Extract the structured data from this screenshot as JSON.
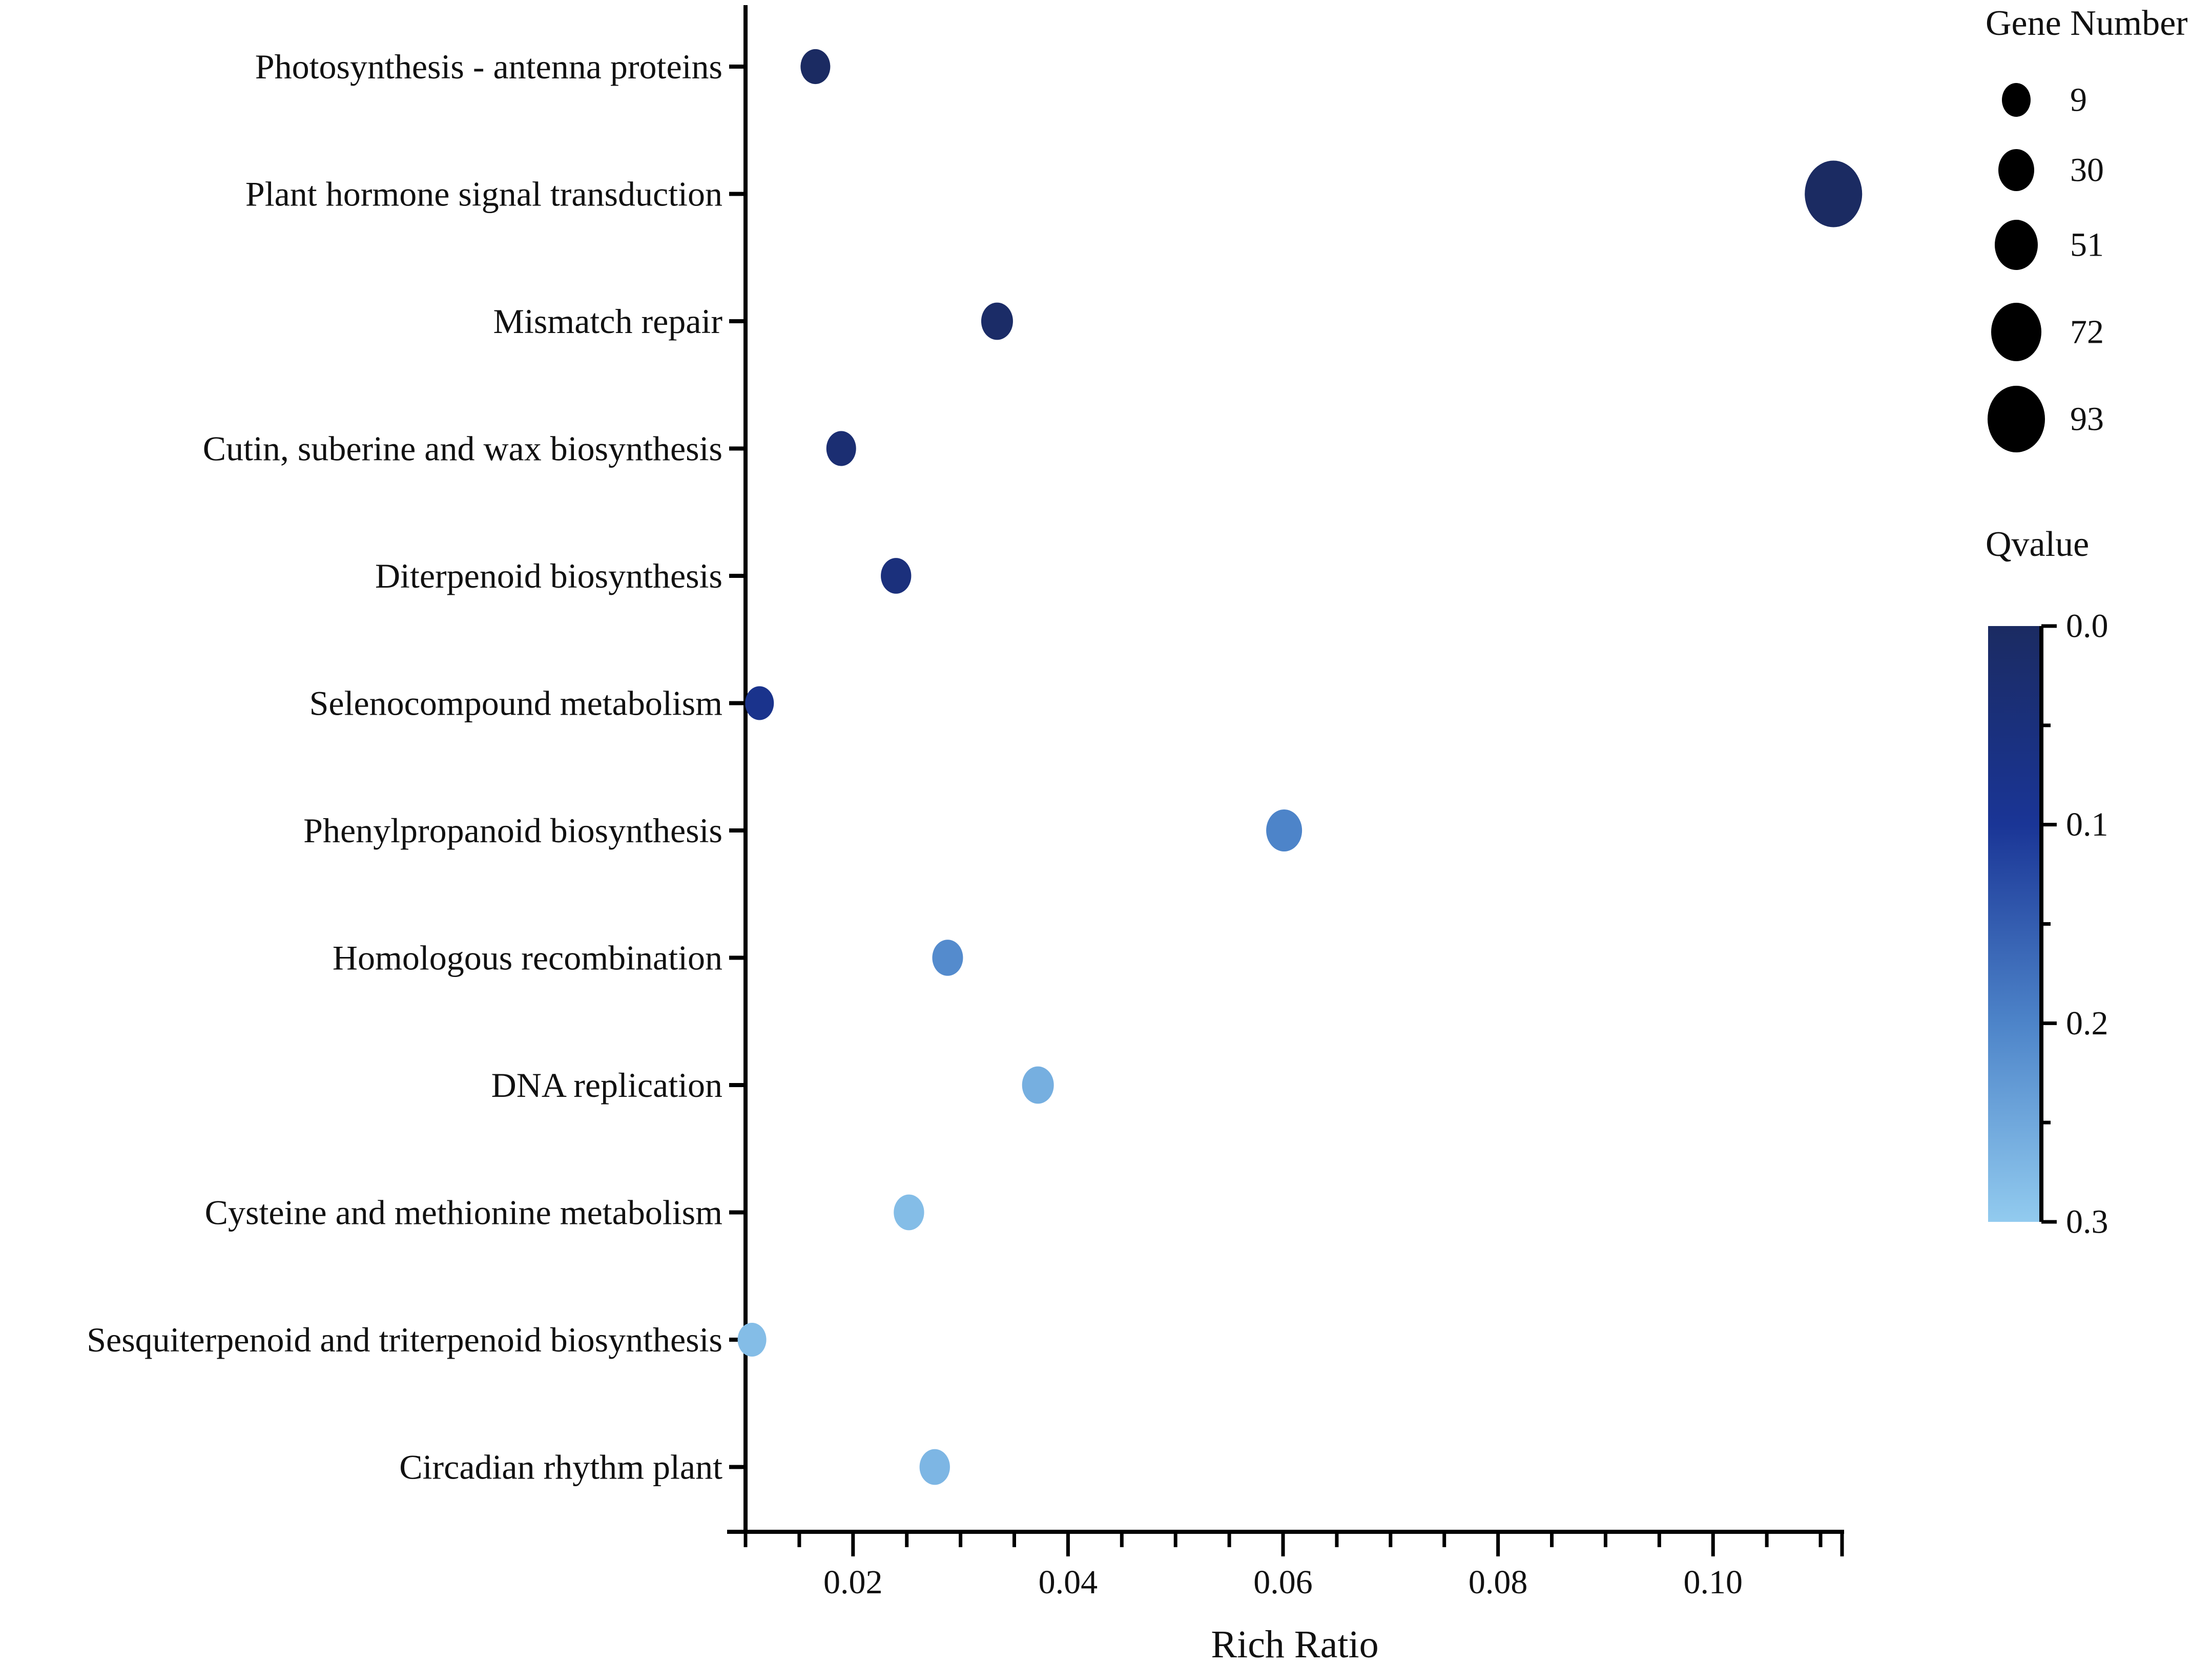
{
  "chart_data": {
    "type": "scatter",
    "subtype": "bubble",
    "title": "",
    "xlabel": "Rich Ratio",
    "ylabel": "",
    "xlim": [
      0.01,
      0.112
    ],
    "xticks": [
      0.02,
      0.04,
      0.06,
      0.08,
      0.1
    ],
    "xtick_labels": [
      "0.02",
      "0.04",
      "0.06",
      "0.08",
      "0.10"
    ],
    "categories": [
      "Photosynthesis - antenna proteins",
      "Plant hormone signal transduction",
      "Mismatch repair",
      "Cutin, suberine and wax biosynthesis",
      "Diterpenoid biosynthesis",
      "Selenocompound metabolism",
      "Phenylpropanoid biosynthesis",
      "Homologous recombination",
      "DNA replication",
      "Cysteine and methionine metabolism",
      "Sesquiterpenoid and triterpenoid biosynthesis",
      "Circadian rhythm plant"
    ],
    "points": [
      {
        "category": "Photosynthesis - antenna proteins",
        "rich_ratio": 0.0165,
        "gene_number": 12,
        "qvalue": 0.0
      },
      {
        "category": "Plant hormone signal transduction",
        "rich_ratio": 0.1112,
        "gene_number": 93,
        "qvalue": 0.0
      },
      {
        "category": "Mismatch repair",
        "rich_ratio": 0.0334,
        "gene_number": 18,
        "qvalue": 0.01
      },
      {
        "category": "Cutin, suberine and wax biosynthesis",
        "rich_ratio": 0.0189,
        "gene_number": 12,
        "qvalue": 0.03
      },
      {
        "category": "Diterpenoid biosynthesis",
        "rich_ratio": 0.024,
        "gene_number": 14,
        "qvalue": 0.05
      },
      {
        "category": "Selenocompound metabolism",
        "rich_ratio": 0.0113,
        "gene_number": 9,
        "qvalue": 0.08
      },
      {
        "category": "Phenylpropanoid biosynthesis",
        "rich_ratio": 0.0601,
        "gene_number": 30,
        "qvalue": 0.2
      },
      {
        "category": "Homologous recombination",
        "rich_ratio": 0.0288,
        "gene_number": 15,
        "qvalue": 0.21
      },
      {
        "category": "DNA replication",
        "rich_ratio": 0.0372,
        "gene_number": 18,
        "qvalue": 0.26
      },
      {
        "category": "Cysteine and methionine metabolism",
        "rich_ratio": 0.0252,
        "gene_number": 14,
        "qvalue": 0.28
      },
      {
        "category": "Sesquiterpenoid and triterpenoid biosynthesis",
        "rich_ratio": 0.0106,
        "gene_number": 9,
        "qvalue": 0.28
      },
      {
        "category": "Circadian rhythm plant",
        "rich_ratio": 0.0276,
        "gene_number": 14,
        "qvalue": 0.27
      }
    ],
    "size_legend": {
      "title": "Gene Number",
      "values": [
        9,
        30,
        51,
        72,
        93
      ],
      "labels": [
        "9",
        "30",
        "51",
        "72",
        "93"
      ]
    },
    "color_legend": {
      "title": "Qvalue",
      "range": [
        0.0,
        0.3
      ],
      "ticks": [
        0.0,
        0.1,
        0.2,
        0.3
      ],
      "tick_labels": [
        "0.0",
        "0.1",
        "0.2",
        "0.3"
      ],
      "color_stops": [
        {
          "value": 0.0,
          "color": "#1b2b62"
        },
        {
          "value": 0.1,
          "color": "#1a3596"
        },
        {
          "value": 0.2,
          "color": "#4d84c9"
        },
        {
          "value": 0.3,
          "color": "#92cbef"
        }
      ]
    },
    "axis_color": "#000000",
    "legend_marker_color": "#000000"
  }
}
